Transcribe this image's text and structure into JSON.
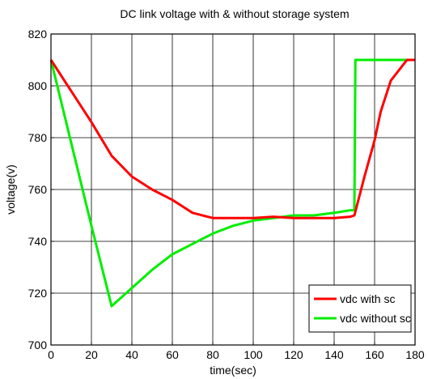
{
  "chart_data": {
    "type": "line",
    "title": "DC link voltage with & without storage system",
    "xlabel": "time(sec)",
    "ylabel": "voltage(v)",
    "xlim": [
      0,
      180
    ],
    "ylim": [
      700,
      820
    ],
    "xticks": [
      "0",
      "20",
      "40",
      "60",
      "80",
      "100",
      "120",
      "140",
      "160",
      "180"
    ],
    "yticks": [
      "700",
      "720",
      "740",
      "760",
      "780",
      "800",
      "820"
    ],
    "grid": true,
    "legend_position": "bottom-right",
    "series": [
      {
        "name": "vdc with sc",
        "color": "#ff0000",
        "x": [
          0,
          10,
          20,
          30,
          40,
          50,
          60,
          70,
          80,
          90,
          100,
          110,
          120,
          130,
          140,
          148,
          150,
          155,
          160,
          163,
          168,
          173,
          176,
          180
        ],
        "y": [
          810,
          798,
          786,
          773,
          765,
          760,
          756,
          751,
          749,
          749,
          749,
          749.5,
          749,
          749,
          749,
          749.5,
          750,
          765,
          779,
          790,
          802,
          807,
          810,
          810
        ]
      },
      {
        "name": "vdc without sc",
        "color": "#00ee00",
        "x": [
          0,
          10,
          20,
          30,
          40,
          50,
          60,
          70,
          80,
          90,
          100,
          110,
          120,
          130,
          140,
          148,
          150,
          150.5,
          160,
          170,
          180
        ],
        "y": [
          810,
          778,
          746,
          715,
          722,
          729,
          735,
          739,
          743,
          746,
          748,
          749,
          750,
          750,
          751,
          752,
          752,
          810,
          810,
          810,
          810
        ]
      }
    ]
  }
}
